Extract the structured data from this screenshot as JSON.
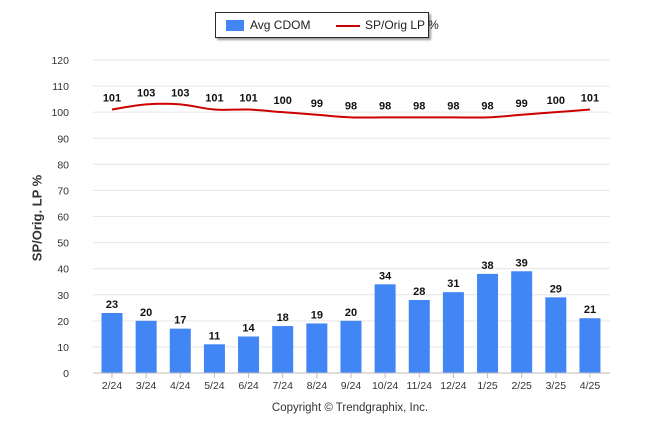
{
  "chart_data": {
    "type": "bar",
    "categories": [
      "2/24",
      "3/24",
      "4/24",
      "5/24",
      "6/24",
      "7/24",
      "8/24",
      "9/24",
      "10/24",
      "11/24",
      "12/24",
      "1/25",
      "2/25",
      "3/25",
      "4/25"
    ],
    "series": [
      {
        "name": "Avg CDOM",
        "type": "bar",
        "color": "#4285f4",
        "values": [
          23,
          20,
          17,
          11,
          14,
          18,
          19,
          20,
          34,
          28,
          31,
          38,
          39,
          29,
          21
        ]
      },
      {
        "name": "SP/Orig LP %",
        "type": "line",
        "color": "#cc0000",
        "values": [
          101,
          103,
          103,
          101,
          101,
          100,
          99,
          98,
          98,
          98,
          98,
          98,
          99,
          100,
          101
        ]
      }
    ],
    "ylabel": "SP/Orig. LP %",
    "ylim": [
      0,
      120
    ],
    "yticks": [
      0,
      10,
      20,
      30,
      40,
      50,
      60,
      70,
      80,
      90,
      100,
      110,
      120
    ],
    "grid": true,
    "legend": "top-center"
  },
  "legend": {
    "bar_label": "Avg CDOM",
    "line_label": "SP/Orig LP %"
  },
  "footer": {
    "copyright": "Copyright © Trendgraphix, Inc."
  }
}
